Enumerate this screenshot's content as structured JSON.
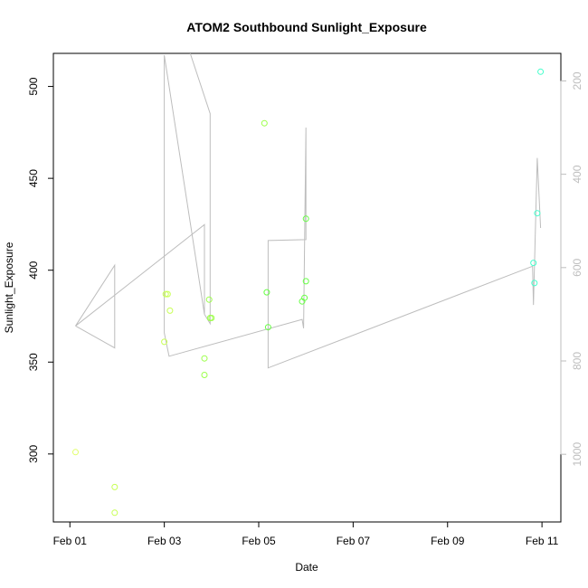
{
  "chart_data": {
    "type": "scatter",
    "title": "ATOM2 Southbound Sunlight_Exposure",
    "xlabel": "Date",
    "ylabel": "Sunlight_Exposure",
    "x_ticks": [
      "Feb 01",
      "Feb 03",
      "Feb 05",
      "Feb 07",
      "Feb 09",
      "Feb 11"
    ],
    "x_tick_values": [
      0,
      2,
      4,
      6,
      8,
      10
    ],
    "xlim": [
      -0.35,
      10.4
    ],
    "ylim": [
      263,
      518
    ],
    "y_ticks": [
      300,
      350,
      400,
      450,
      500
    ],
    "y2_ticks": [
      200,
      400,
      600,
      800,
      1000
    ],
    "y2lim": [
      141,
      1145
    ],
    "grid": false,
    "point_colors": [
      "#e2ff6a",
      "#c8ff55",
      "#9cff4a",
      "#66ff44",
      "#44ff66",
      "#44ff99",
      "#44ffcc"
    ],
    "line_color": "#bdbdbd",
    "points": [
      {
        "x": 0.12,
        "y": 301
      },
      {
        "x": 0.95,
        "y": 282
      },
      {
        "x": 0.95,
        "y": 268
      },
      {
        "x": 2.0,
        "y": 361
      },
      {
        "x": 2.03,
        "y": 387
      },
      {
        "x": 2.07,
        "y": 387
      },
      {
        "x": 2.12,
        "y": 378
      },
      {
        "x": 2.85,
        "y": 352
      },
      {
        "x": 2.85,
        "y": 343
      },
      {
        "x": 2.95,
        "y": 384
      },
      {
        "x": 2.97,
        "y": 374
      },
      {
        "x": 3.0,
        "y": 374
      },
      {
        "x": 4.12,
        "y": 480
      },
      {
        "x": 4.17,
        "y": 388
      },
      {
        "x": 4.2,
        "y": 369
      },
      {
        "x": 4.92,
        "y": 383
      },
      {
        "x": 4.97,
        "y": 385
      },
      {
        "x": 5.0,
        "y": 394
      },
      {
        "x": 5.0,
        "y": 428
      },
      {
        "x": 9.82,
        "y": 404
      },
      {
        "x": 9.84,
        "y": 393
      },
      {
        "x": 9.9,
        "y": 431
      },
      {
        "x": 9.97,
        "y": 508
      }
    ],
    "line_series": {
      "name": "",
      "axis": "right",
      "points": [
        {
          "x": 0.12,
          "y": 725
        },
        {
          "x": 0.95,
          "y": 772
        },
        {
          "x": 0.95,
          "y": 595
        },
        {
          "x": 0.12,
          "y": 725
        },
        {
          "x": 2.85,
          "y": 508
        },
        {
          "x": 2.85,
          "y": 700
        },
        {
          "x": 2.0,
          "y": 145
        },
        {
          "x": 2.0,
          "y": 740
        },
        {
          "x": 2.1,
          "y": 790
        },
        {
          "x": 4.92,
          "y": 711
        },
        {
          "x": 4.95,
          "y": 730
        },
        {
          "x": 5.0,
          "y": 300
        },
        {
          "x": 5.0,
          "y": 540
        },
        {
          "x": 4.2,
          "y": 542
        },
        {
          "x": 4.2,
          "y": 815
        },
        {
          "x": 9.8,
          "y": 597
        },
        {
          "x": 9.82,
          "y": 680
        },
        {
          "x": 9.85,
          "y": 560
        },
        {
          "x": 9.9,
          "y": 365
        },
        {
          "x": 9.97,
          "y": 515
        }
      ],
      "extra_path": [
        {
          "x": 2.55,
          "y": 141
        },
        {
          "x": 2.97,
          "y": 270
        },
        {
          "x": 2.97,
          "y": 720
        },
        {
          "x": 2.85,
          "y": 700
        }
      ]
    }
  }
}
